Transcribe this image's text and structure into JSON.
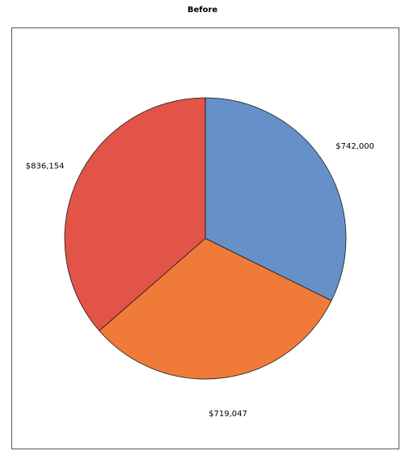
{
  "chart_data": {
    "type": "pie",
    "title": "Before",
    "values": [
      742000,
      719047,
      836154
    ],
    "labels": [
      "$742,000",
      "$719,047",
      "$836,154"
    ],
    "colors": [
      "#6690c8",
      "#f07b39",
      "#e15447"
    ],
    "start": "12 o'clock",
    "direction": "clockwise",
    "legend": "none"
  }
}
